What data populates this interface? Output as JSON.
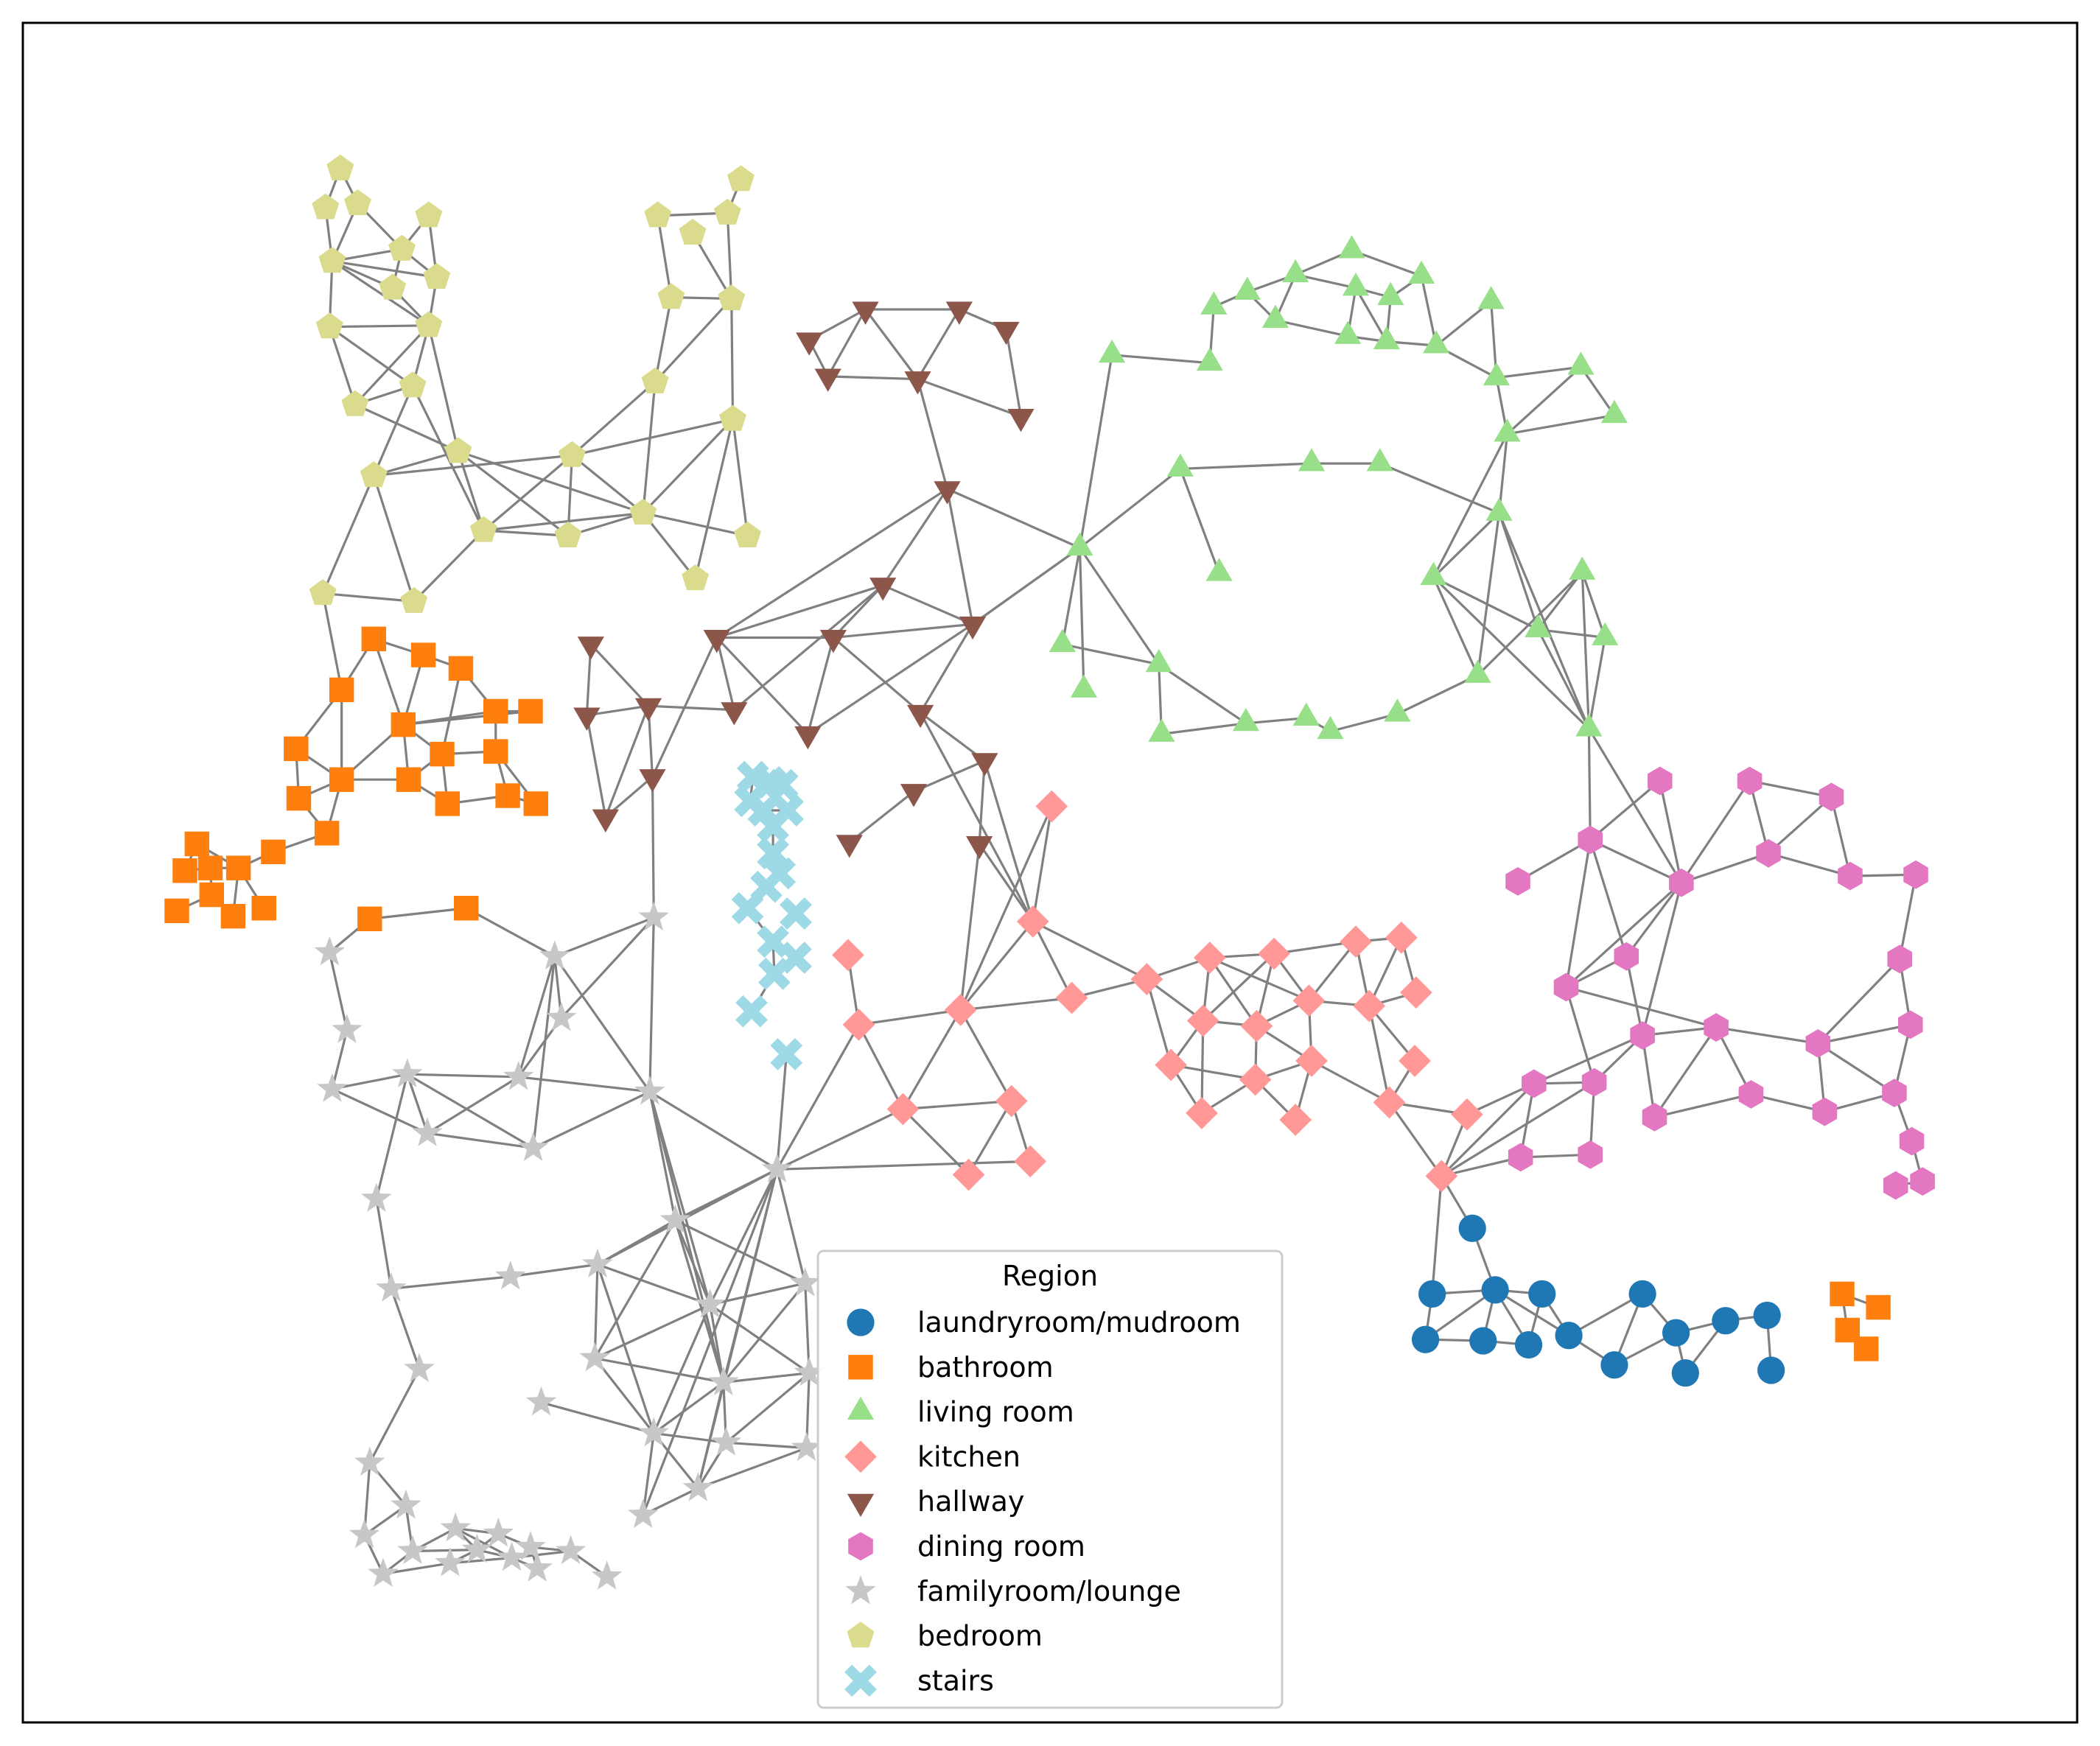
{
  "legend": {
    "title": "Region",
    "entries": [
      {
        "label": "laundryroom/mudroom",
        "color": "#1f77b4",
        "marker": "circle"
      },
      {
        "label": "bathroom",
        "color": "#ff7f0e",
        "marker": "square"
      },
      {
        "label": "living room",
        "color": "#98df8a",
        "marker": "triangle-up"
      },
      {
        "label": "kitchen",
        "color": "#ff9896",
        "marker": "diamond"
      },
      {
        "label": "hallway",
        "color": "#8c564b",
        "marker": "triangle-down"
      },
      {
        "label": "dining room",
        "color": "#e377c2",
        "marker": "hexagon"
      },
      {
        "label": "familyroom/lounge",
        "color": "#c7c7c7",
        "marker": "star"
      },
      {
        "label": "bedroom",
        "color": "#dbdb8d",
        "marker": "pentagon"
      },
      {
        "label": "stairs",
        "color": "#9edae5",
        "marker": "x"
      }
    ]
  },
  "edge_color": "#808080"
}
